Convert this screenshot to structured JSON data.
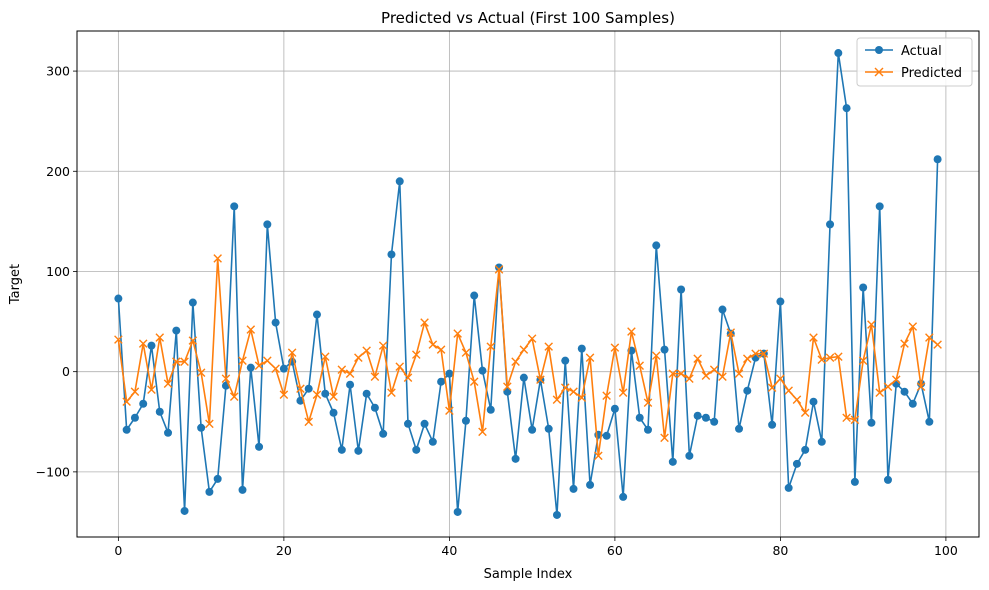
{
  "chart_data": {
    "type": "line",
    "title": "Predicted vs Actual (First 100 Samples)",
    "xlabel": "Sample Index",
    "ylabel": "Target",
    "xlim": [
      -5,
      104
    ],
    "ylim": [
      -165,
      340
    ],
    "xticks": [
      0,
      20,
      40,
      60,
      80,
      100
    ],
    "yticks": [
      -100,
      0,
      100,
      200,
      300
    ],
    "grid": true,
    "legend_position": "top-right",
    "x": [
      0,
      1,
      2,
      3,
      4,
      5,
      6,
      7,
      8,
      9,
      10,
      11,
      12,
      13,
      14,
      15,
      16,
      17,
      18,
      19,
      20,
      21,
      22,
      23,
      24,
      25,
      26,
      27,
      28,
      29,
      30,
      31,
      32,
      33,
      34,
      35,
      36,
      37,
      38,
      39,
      40,
      41,
      42,
      43,
      44,
      45,
      46,
      47,
      48,
      49,
      50,
      51,
      52,
      53,
      54,
      55,
      56,
      57,
      58,
      59,
      60,
      61,
      62,
      63,
      64,
      65,
      66,
      67,
      68,
      69,
      70,
      71,
      72,
      73,
      74,
      75,
      76,
      77,
      78,
      79,
      80,
      81,
      82,
      83,
      84,
      85,
      86,
      87,
      88,
      89,
      90,
      91,
      92,
      93,
      94,
      95,
      96,
      97,
      98,
      99
    ],
    "series": [
      {
        "name": "Actual",
        "color": "#1f77b4",
        "marker": "circle",
        "values": [
          73,
          -58,
          -46,
          -32,
          26,
          -40,
          -61,
          41,
          -139,
          69,
          -56,
          -120,
          -107,
          -14,
          165,
          -118,
          4,
          -75,
          147,
          49,
          3,
          10,
          -29,
          -17,
          57,
          -22,
          -41,
          -78,
          -13,
          -79,
          -22,
          -36,
          -62,
          117,
          190,
          -52,
          -78,
          -52,
          -70,
          -10,
          -2,
          -140,
          -49,
          76,
          1,
          -38,
          104,
          -20,
          -87,
          -6,
          -58,
          -8,
          -57,
          -143,
          11,
          -117,
          23,
          -113,
          -63,
          -64,
          -37,
          -125,
          21,
          -46,
          -58,
          126,
          22,
          -90,
          82,
          -84,
          -44,
          -46,
          -50,
          62,
          38,
          -57,
          -19,
          14,
          18,
          -53,
          70,
          -116,
          -92,
          -78,
          -30,
          -70,
          147,
          318,
          263,
          -110,
          84,
          -51,
          165,
          -108,
          -12,
          -20,
          -32,
          -12,
          -50,
          212
        ]
      },
      {
        "name": "Predicted",
        "color": "#ff7f0e",
        "marker": "x",
        "values": [
          32,
          -30,
          -20,
          28,
          -18,
          34,
          -12,
          10,
          10,
          31,
          -1,
          -52,
          113,
          -7,
          -25,
          11,
          42,
          6,
          11,
          3,
          -23,
          19,
          -17,
          -50,
          -23,
          15,
          -25,
          2,
          -2,
          14,
          21,
          -5,
          26,
          -21,
          5,
          -6,
          17,
          49,
          27,
          22,
          -39,
          38,
          19,
          -10,
          -60,
          25,
          102,
          -15,
          10,
          22,
          33,
          -8,
          25,
          -28,
          -16,
          -20,
          -26,
          14,
          -84,
          -24,
          24,
          -21,
          40,
          6,
          -31,
          16,
          -66,
          -2,
          -2,
          -7,
          13,
          -4,
          2,
          -5,
          39,
          -2,
          13,
          18,
          18,
          -16,
          -7,
          -19,
          -28,
          -41,
          34,
          12,
          14,
          15,
          -46,
          -48,
          11,
          47,
          -21,
          -15,
          -8,
          28,
          45,
          -15,
          34,
          27
        ]
      }
    ]
  }
}
